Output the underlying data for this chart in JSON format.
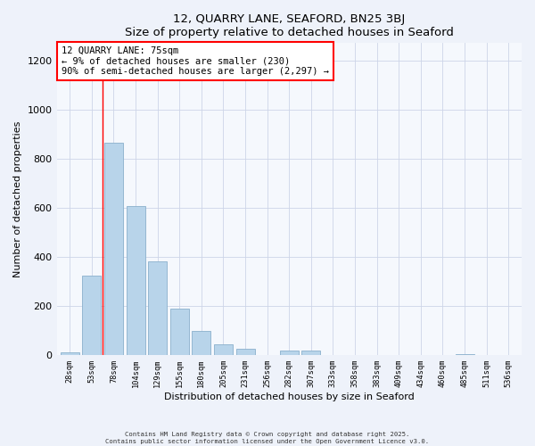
{
  "title": "12, QUARRY LANE, SEAFORD, BN25 3BJ",
  "subtitle": "Size of property relative to detached houses in Seaford",
  "xlabel": "Distribution of detached houses by size in Seaford",
  "ylabel": "Number of detached properties",
  "bar_labels": [
    "28sqm",
    "53sqm",
    "78sqm",
    "104sqm",
    "129sqm",
    "155sqm",
    "180sqm",
    "205sqm",
    "231sqm",
    "256sqm",
    "282sqm",
    "307sqm",
    "333sqm",
    "358sqm",
    "383sqm",
    "409sqm",
    "434sqm",
    "460sqm",
    "485sqm",
    "511sqm",
    "536sqm"
  ],
  "bar_values": [
    10,
    325,
    865,
    605,
    380,
    190,
    100,
    43,
    25,
    0,
    20,
    18,
    0,
    0,
    0,
    0,
    0,
    0,
    3,
    0,
    0
  ],
  "bar_color": "#b8d4ea",
  "bar_edge_color": "#8ab0cc",
  "property_line_label": "12 QUARRY LANE: 75sqm",
  "annotation_line1": "← 9% of detached houses are smaller (230)",
  "annotation_line2": "90% of semi-detached houses are larger (2,297) →",
  "ylim": [
    0,
    1270
  ],
  "yticks": [
    0,
    200,
    400,
    600,
    800,
    1000,
    1200
  ],
  "bg_color": "#eef2fa",
  "plot_bg_color": "#f5f8fd",
  "grid_color": "#cdd5e8",
  "footer_line1": "Contains HM Land Registry data © Crown copyright and database right 2025.",
  "footer_line2": "Contains public sector information licensed under the Open Government Licence v3.0.",
  "red_line_bar_index": 2
}
